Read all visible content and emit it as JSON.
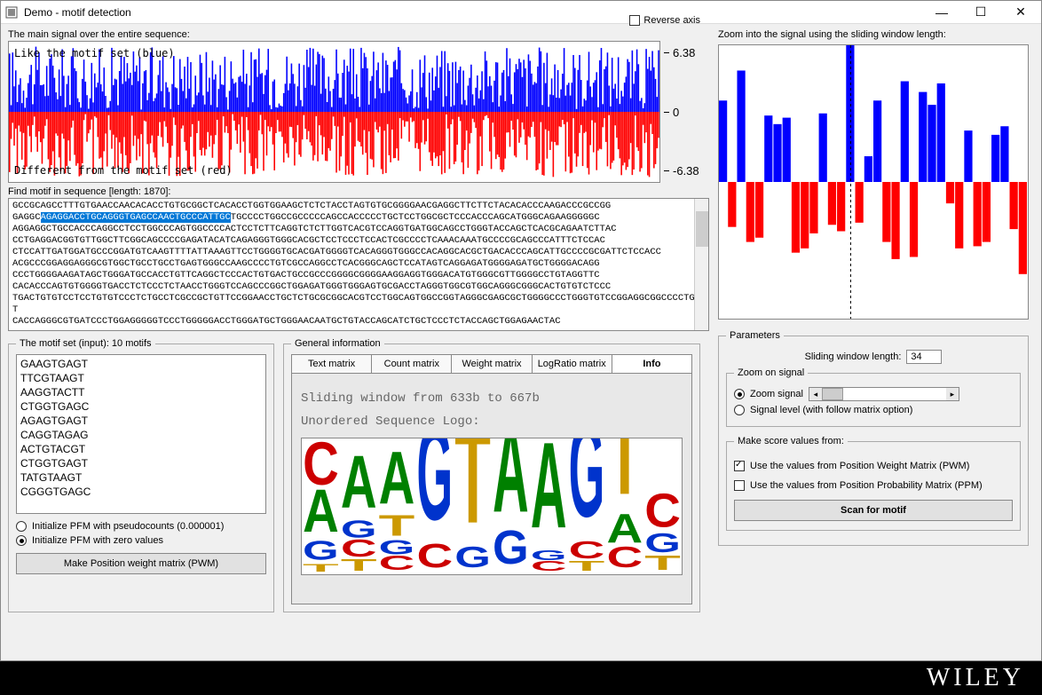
{
  "window": {
    "title": "Demo - motif detection"
  },
  "main_signal": {
    "label": "The main signal over the entire sequence:",
    "overlay_top": "Like the motif set (blue)",
    "overlay_bot": "Different from the motif set (red)",
    "reverse_axis_label": "Reverse axis",
    "reverse_axis_checked": false,
    "y_max": "6.38",
    "y_mid": "0",
    "y_min": "-6.38",
    "pos_color": "#0000ff",
    "neg_color": "#ff0000",
    "n_bars": 420,
    "ylim": 6.38
  },
  "zoom_signal": {
    "label": "Zoom into the signal using the sliding window length:",
    "pos_color": "#0000ff",
    "neg_color": "#ff0000",
    "values": [
      3.8,
      -2.1,
      5.2,
      -2.8,
      -2.6,
      3.1,
      2.7,
      3.0,
      -3.3,
      -3.1,
      -2.4,
      3.2,
      -2.0,
      -2.3,
      6.38,
      -1.9,
      1.2,
      3.8,
      -2.8,
      -3.6,
      4.7,
      -3.5,
      4.2,
      3.6,
      4.6,
      -1.0,
      -3.1,
      2.4,
      -3.0,
      -2.8,
      2.2,
      2.6,
      -2.2,
      -4.3
    ],
    "ylim": 6.38,
    "marker_index": 14
  },
  "sequence": {
    "label_prefix": "Find motif in sequence [length: ",
    "length": "1870",
    "label_suffix": "]:",
    "pre": "GCCGCAGCCTTTGTGAACCAACACACCTGTGCGGCTCACACCTGGTGGAAGCTCTCTACCTAGTGTGCGGGGAACGAGGCTTCTTCTACACACCCAAGACCCGCCGG\nGAGGC",
    "highlight": "AGAGGACCTGCAGGGTGAGCCAACTGCCCATTGC",
    "post": "TGCCCCTGGCCGCCCCCAGCCACCCCCTGCTCCTGGCGCTCCCACCCAGCATGGGCAGAAGGGGGC\nAGGAGGCTGCCACCCAGGCCTCCTGGCCCAGTGGCCCCACTCCTCTTCAGGTCTCTTGGTCACGTCCAGGTGATGGCAGCCTGGGTACCAGCTCACGCAGAATCTTAC\nCCTGAGGACGGTGTTGGCTTCGGCAGCCCCGAGATACATCAGAGGGTGGGCACGCTCCTCCCTCCACTCGCCCCTCAAACAAATGCCCCGCAGCCCATTTCTCCAC\nCTCCATTGATGGATGCCCGGATGTCAAGTTTTATTAAAGTTCCTGGGGTGCACGATGGGGTCACAGGGTGGGCCACAGGCACGCTGACACCCAGCATTGCCCCGCGATTCTCCACC\nACGCCCGGAGGAGGGCGTGGCTGCCTGCCTGAGTGGGCCAAGCCCCTGTCGCCAGGCCTCACGGGCAGCTCCATAGTCAGGAGATGGGGAGATGCTGGGGACAGG\nCCCTGGGGAAGATAGCTGGGATGCCACCTGTTCAGGCTCCCACTGTGACTGCCGCCCGGGGCGGGGAAGGAGGTGGGACATGTGGGCGTTGGGGCCTGTAGGTTC\nCACACCCAGTGTGGGGTGACCTCTCCCTCTAACCTGGGTCCAGCCCGGCTGGAGATGGGTGGGAGTGCGACCTAGGGTGGCGTGGCAGGGCGGGCACTGTGTCTCCC\nTGACTGTGTCCTCCTGTGTCCCTCTGCCTCGCCGCTGTTCCGGAACCTGCTCTGCGCGGCACGTCCTGGCAGTGGCCGGTAGGGCGAGCGCTGGGGCCCTGGGTGTCCGGAGGCGGCCCCTGGT\nCACCAGGGCGTGATCCCTGGAGGGGGTCCCTGGGGGACCTGGGATGCTGGGAACAATGCTGTACCAGCATCTGCTCCCTCTACCAGCTGGAGAACTAC"
  },
  "motifs": {
    "legend": "The motif set (input): 10 motifs",
    "items": [
      "GAAGTGAGT",
      "TTCGTAAGT",
      "AAGGTACTT",
      "CTGGTGAGC",
      "AGAGTGAGT",
      "CAGGTAGAG",
      "ACTGTACGT",
      "CTGGTGAGT",
      "TATGTAAGT",
      "CGGGTGAGC"
    ],
    "init_pseudo_label": "Initialize PFM with pseudocounts (0.000001)",
    "init_zero_label": "Initialize PFM with zero values",
    "init_selected": "zero",
    "make_pwm_btn": "Make Position weight matrix (PWM)"
  },
  "general": {
    "legend": "General information",
    "tabs": [
      "Text matrix",
      "Count matrix",
      "Weight matrix",
      "LogRatio matrix",
      "Info"
    ],
    "active_tab": 4,
    "sliding_text": "Sliding window from 633b to 667b",
    "logo_label": "Unordered Sequence Logo:",
    "logo": {
      "colors": {
        "A": "#008000",
        "C": "#cc0000",
        "G": "#0033cc",
        "T": "#cc9900"
      },
      "columns": [
        [
          [
            "A",
            0.45
          ],
          [
            "C",
            0.45
          ],
          [
            "G",
            0.2
          ],
          [
            "T",
            0.08
          ]
        ],
        [
          [
            "A",
            0.55
          ],
          [
            "C",
            0.18
          ],
          [
            "G",
            0.18
          ],
          [
            "T",
            0.12
          ]
        ],
        [
          [
            "A",
            0.55
          ],
          [
            "C",
            0.15
          ],
          [
            "G",
            0.15
          ],
          [
            "T",
            0.22
          ]
        ],
        [
          [
            "C",
            0.25
          ],
          [
            "G",
            1.0
          ]
        ],
        [
          [
            "G",
            0.22
          ],
          [
            "T",
            1.0
          ]
        ],
        [
          [
            "A",
            0.9
          ],
          [
            "G",
            0.35
          ]
        ],
        [
          [
            "A",
            0.9
          ],
          [
            "C",
            0.1
          ],
          [
            "G",
            0.1
          ]
        ],
        [
          [
            "G",
            1.0
          ],
          [
            "C",
            0.18
          ],
          [
            "T",
            0.1
          ]
        ],
        [
          [
            "A",
            0.3
          ],
          [
            "C",
            0.22
          ],
          [
            "T",
            0.9
          ]
        ],
        [
          [
            "C",
            0.35
          ],
          [
            "G",
            0.2
          ],
          [
            "T",
            0.15
          ]
        ]
      ]
    }
  },
  "params": {
    "legend": "Parameters",
    "sliding_label": "Sliding window length:",
    "sliding_value": "34",
    "zoom_legend": "Zoom on signal",
    "zoom_signal_label": "Zoom signal",
    "signal_level_label": "Signal level (with follow matrix option)",
    "zoom_selected": "zoom",
    "score_legend": "Make score values from:",
    "pwm_label": "Use the values from Position Weight Matrix (PWM)",
    "ppm_label": "Use the values from Position Probability Matrix (PPM)",
    "pwm_checked": true,
    "ppm_checked": false,
    "scan_btn": "Scan for motif"
  },
  "footer": {
    "brand": "WILEY"
  }
}
